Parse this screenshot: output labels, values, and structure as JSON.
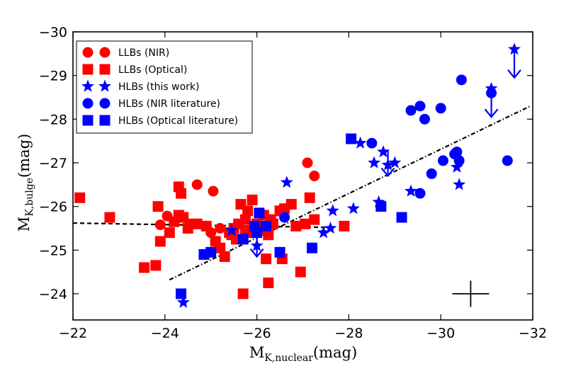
{
  "chart_data": {
    "type": "scatter",
    "title": "",
    "xlabel": "M",
    "xlabel_sub": "K,nuclear",
    "xlabel_unit": "(mag)",
    "ylabel": "M",
    "ylabel_sub": "K,bulge",
    "ylabel_unit": "(mag)",
    "xlim": [
      -22,
      -32
    ],
    "ylim": [
      -23.4,
      -30
    ],
    "xticks": [
      -22,
      -24,
      -26,
      -28,
      -30,
      -32
    ],
    "xtick_labels": [
      "−22",
      "−24",
      "−26",
      "−28",
      "−30",
      "−32"
    ],
    "yticks": [
      -24,
      -25,
      -26,
      -27,
      -28,
      -29,
      -30
    ],
    "ytick_labels": [
      "−24",
      "−25",
      "−26",
      "−27",
      "−28",
      "−29",
      "−30"
    ],
    "colors": {
      "red": "#ff0000",
      "blue": "#0000ff",
      "black": "#000000"
    },
    "legend": {
      "placement": "top-left",
      "entries": [
        {
          "label": "LLBs (NIR)",
          "marker": "circle",
          "color": "#ff0000"
        },
        {
          "label": "LLBs (Optical)",
          "marker": "square",
          "color": "#ff0000"
        },
        {
          "label": "HLBs (this work)",
          "marker": "star",
          "color": "#0000ff"
        },
        {
          "label": "HLBs (NIR literature)",
          "marker": "circle",
          "color": "#0000ff"
        },
        {
          "label": "HLBs (Optical literature)",
          "marker": "square",
          "color": "#0000ff"
        }
      ]
    },
    "series": [
      {
        "name": "LLBs (NIR)",
        "marker": "circle",
        "color": "#ff0000",
        "x": [
          -23.9,
          -24.05,
          -24.7,
          -25.05,
          -27.1,
          -27.25,
          -25.0,
          -25.2
        ],
        "y": [
          -25.58,
          -25.78,
          -26.5,
          -26.35,
          -27.0,
          -26.7,
          -25.4,
          -25.5
        ]
      },
      {
        "name": "LLBs (Optical)",
        "marker": "square",
        "color": "#ff0000",
        "x": [
          -22.15,
          -22.8,
          -23.55,
          -23.8,
          -23.85,
          -23.9,
          -24.2,
          -24.3,
          -24.35,
          -24.4,
          -24.5,
          -24.55,
          -24.7,
          -24.9,
          -25.1,
          -25.2,
          -25.3,
          -25.4,
          -25.45,
          -25.5,
          -25.6,
          -25.65,
          -25.7,
          -25.75,
          -25.8,
          -25.85,
          -26.0,
          -26.1,
          -26.15,
          -26.2,
          -26.25,
          -26.3,
          -26.35,
          -26.5,
          -26.55,
          -26.75,
          -26.85,
          -26.95,
          -27.05,
          -27.15,
          -27.25,
          -27.9,
          -24.1,
          -25.75,
          -26.25,
          -24.3,
          -25.55,
          -25.9,
          -26.6
        ],
        "y": [
          -26.2,
          -25.75,
          -24.6,
          -24.65,
          -26.0,
          -25.2,
          -25.65,
          -26.45,
          -26.3,
          -25.75,
          -25.5,
          -25.6,
          -25.6,
          -25.55,
          -25.2,
          -25.05,
          -24.85,
          -25.4,
          -25.35,
          -25.5,
          -25.6,
          -26.05,
          -24.0,
          -25.45,
          -25.9,
          -25.4,
          -25.6,
          -25.45,
          -25.8,
          -24.8,
          -24.25,
          -25.7,
          -25.6,
          -25.9,
          -24.8,
          -26.05,
          -25.55,
          -24.5,
          -25.6,
          -26.2,
          -25.7,
          -25.55,
          -25.4,
          -25.7,
          -25.35,
          -25.8,
          -25.25,
          -26.15,
          -25.95
        ]
      },
      {
        "name": "HLBs (this work)",
        "marker": "star",
        "color": "#0000ff",
        "x": [
          -24.4,
          -25.45,
          -26.0,
          -26.65,
          -27.45,
          -27.6,
          -27.65,
          -28.1,
          -28.25,
          -28.55,
          -28.65,
          -28.75,
          -28.85,
          -29.0,
          -29.35,
          -30.35,
          -30.4,
          -31.1,
          -31.6
        ],
        "y": [
          -23.8,
          -25.45,
          -25.1,
          -26.55,
          -25.4,
          -25.5,
          -25.9,
          -25.95,
          -27.45,
          -27.0,
          -26.1,
          -27.25,
          -26.95,
          -27.0,
          -26.35,
          -26.9,
          -26.5,
          -28.7,
          -29.6
        ]
      },
      {
        "name": "HLBs (NIR literature)",
        "marker": "circle",
        "color": "#0000ff",
        "x": [
          -28.5,
          -29.35,
          -29.55,
          -29.65,
          -29.8,
          -30.0,
          -30.05,
          -30.3,
          -30.35,
          -30.4,
          -30.45,
          -31.1,
          -31.45,
          -26.6,
          -29.55
        ],
        "y": [
          -27.45,
          -28.2,
          -28.3,
          -28.0,
          -26.75,
          -28.25,
          -27.05,
          -27.2,
          -27.25,
          -27.05,
          -28.9,
          -28.6,
          -27.05,
          -25.75,
          -26.3
        ]
      },
      {
        "name": "HLBs (Optical literature)",
        "marker": "square",
        "color": "#0000ff",
        "x": [
          -24.35,
          -24.85,
          -25.0,
          -25.7,
          -25.95,
          -26.0,
          -26.05,
          -26.2,
          -26.5,
          -27.2,
          -28.05,
          -28.7,
          -29.15
        ],
        "y": [
          -24.0,
          -24.9,
          -24.95,
          -25.25,
          -25.55,
          -25.4,
          -25.85,
          -25.55,
          -24.95,
          -25.05,
          -27.55,
          -26.0,
          -25.75
        ]
      }
    ],
    "upper_limit_arrows": [
      {
        "x": -26.0,
        "y_from": -25.4,
        "y_to": -24.85
      },
      {
        "x": -28.85,
        "y_from": -27.3,
        "y_to": -26.7
      },
      {
        "x": -31.1,
        "y_from": -28.7,
        "y_to": -28.05
      },
      {
        "x": -31.6,
        "y_from": -29.6,
        "y_to": -28.95
      }
    ],
    "fit_lines": [
      {
        "name": "LLB fit",
        "style": "dashed",
        "color": "#000000",
        "x": [
          -22,
          -27.6
        ],
        "y": [
          -25.62,
          -25.52
        ]
      },
      {
        "name": "HLB fit",
        "style": "dashdot",
        "color": "#000000",
        "x": [
          -24.1,
          -31.95
        ],
        "y": [
          -24.32,
          -28.3
        ]
      }
    ],
    "error_bar": {
      "x": -30.65,
      "y": -24.0,
      "xerr": 0.4,
      "yerr": 0.3,
      "color": "#000000"
    }
  }
}
